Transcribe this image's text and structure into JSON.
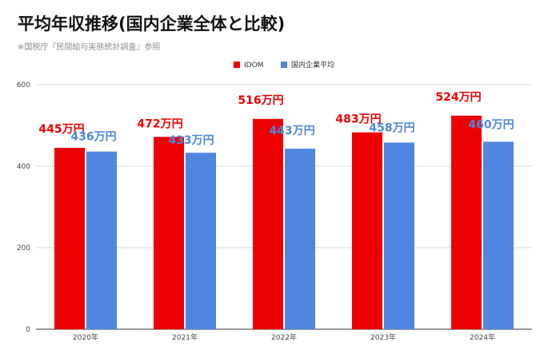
{
  "title": "平均年収推移(国内企業全体と比較)",
  "subtitle": "※国税庁『民間給与実態統計調査』参照",
  "colors": {
    "idom": "#ee0000",
    "national": "#4f86e0",
    "grid": "#d9d9d9",
    "axis": "#333333"
  },
  "chart_data": {
    "type": "bar",
    "categories": [
      "2020年",
      "2021年",
      "2022年",
      "2023年",
      "2024年"
    ],
    "series": [
      {
        "name": "IDOM",
        "values": [
          445,
          472,
          516,
          483,
          524
        ],
        "labels": [
          "445万円",
          "472万円",
          "516万円",
          "483万円",
          "524万円"
        ]
      },
      {
        "name": "国内企業平均",
        "values": [
          436,
          433,
          443,
          458,
          460
        ],
        "labels": [
          "436万円",
          "433万円",
          "443万円",
          "458万円",
          "460万円"
        ]
      }
    ],
    "ylim": [
      0,
      600
    ],
    "yticks": [
      "0",
      "200",
      "400",
      "600"
    ],
    "grid": true,
    "legend": "top-center"
  }
}
